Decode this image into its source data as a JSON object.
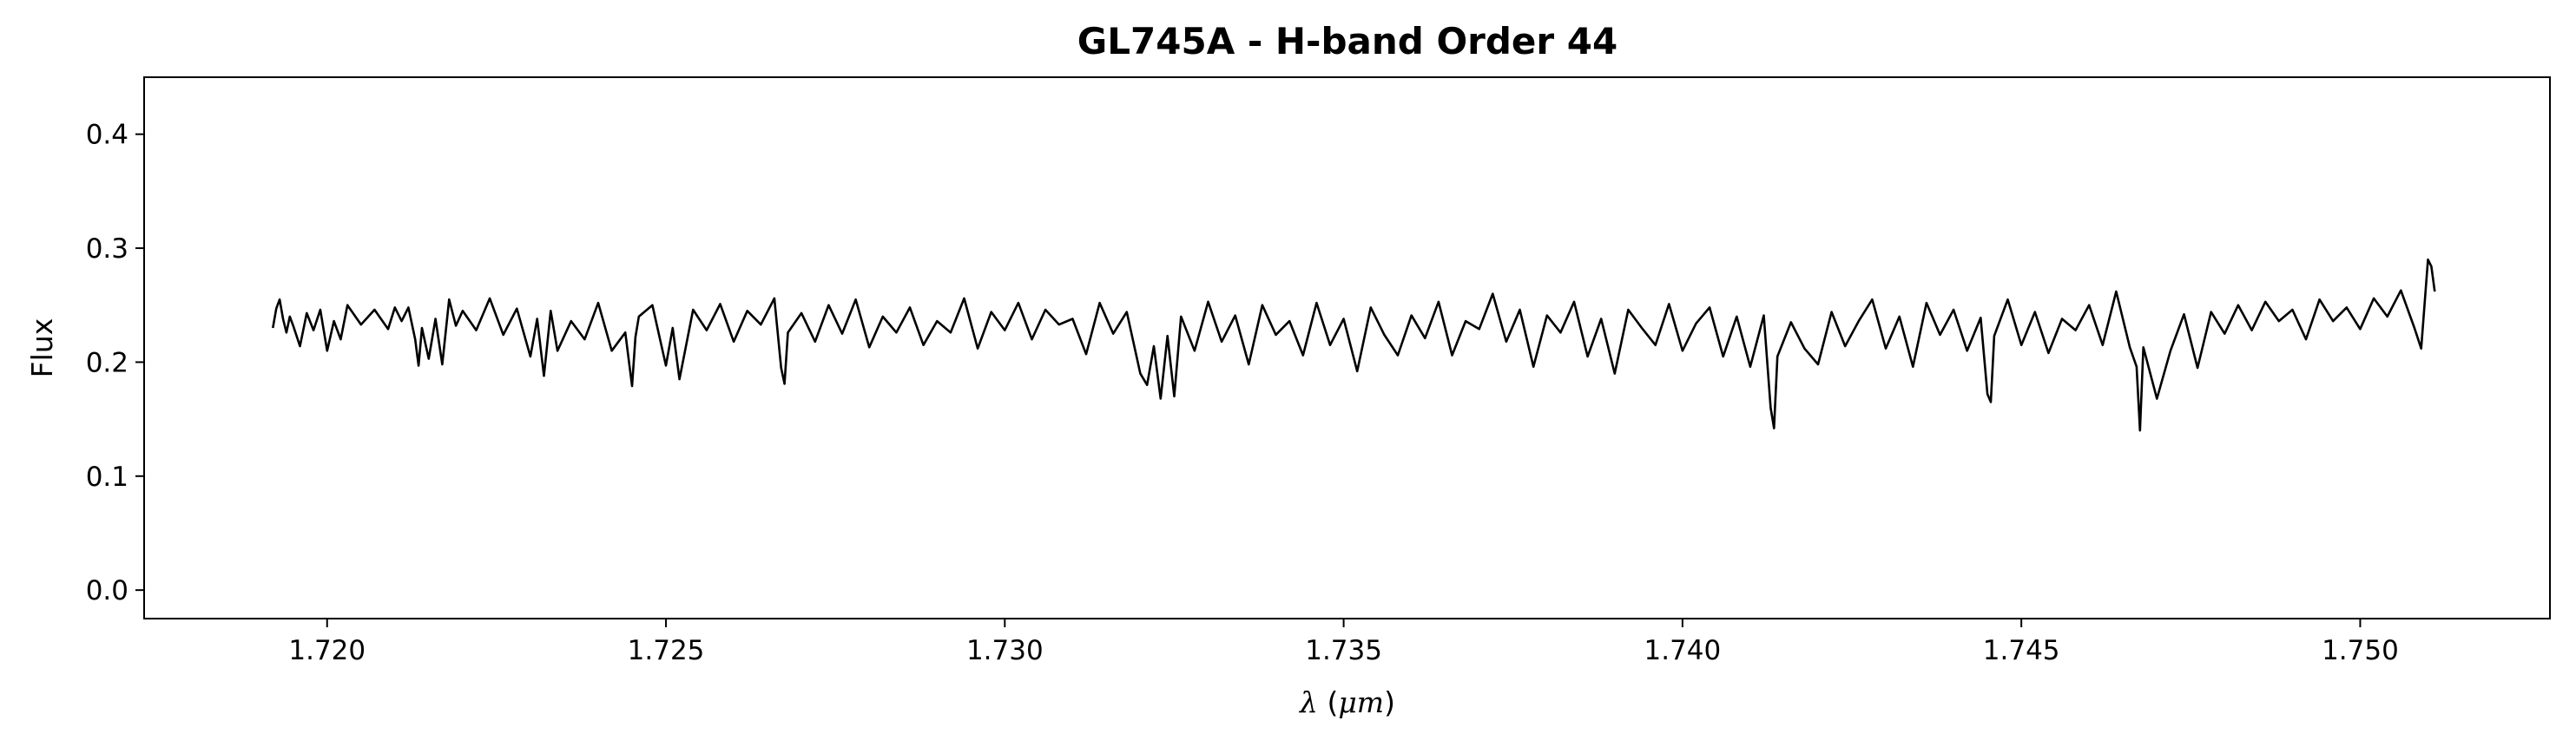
{
  "chart_data": {
    "type": "line",
    "title": "GL745A - H-band Order 44",
    "xlabel": "λ (μm)",
    "ylabel": "Flux",
    "xlim": [
      1.7173,
      1.7528
    ],
    "ylim": [
      -0.025,
      0.45
    ],
    "xticks": [
      "1.720",
      "1.725",
      "1.730",
      "1.735",
      "1.740",
      "1.745",
      "1.750"
    ],
    "yticks": [
      "0.0",
      "0.1",
      "0.2",
      "0.3",
      "0.4"
    ],
    "grid": false,
    "line_color": "#000000",
    "series": [
      {
        "x": [
          1.7192,
          1.71925,
          1.7193,
          1.71935,
          1.7194,
          1.71945,
          1.7195,
          1.7196,
          1.7197,
          1.7198,
          1.7199,
          1.72,
          1.7201,
          1.7202,
          1.7203,
          1.7205,
          1.7207,
          1.7209,
          1.721,
          1.7211,
          1.7212,
          1.7213,
          1.72135,
          1.7214,
          1.7215,
          1.7216,
          1.7217,
          1.7218,
          1.7219,
          1.722,
          1.7222,
          1.7224,
          1.7226,
          1.7228,
          1.723,
          1.7231,
          1.7232,
          1.7233,
          1.7234,
          1.7236,
          1.7238,
          1.724,
          1.7242,
          1.7244,
          1.7245,
          1.72455,
          1.7246,
          1.7248,
          1.725,
          1.7251,
          1.7252,
          1.7254,
          1.7256,
          1.7258,
          1.726,
          1.7262,
          1.7264,
          1.7266,
          1.7267,
          1.72675,
          1.7268,
          1.727,
          1.7272,
          1.7274,
          1.7276,
          1.7278,
          1.728,
          1.7282,
          1.7284,
          1.7286,
          1.7288,
          1.729,
          1.7292,
          1.7294,
          1.7296,
          1.7298,
          1.73,
          1.7302,
          1.7304,
          1.7306,
          1.7308,
          1.731,
          1.7312,
          1.7314,
          1.7316,
          1.7318,
          1.732,
          1.7321,
          1.7322,
          1.7323,
          1.7324,
          1.7325,
          1.7326,
          1.7328,
          1.733,
          1.7332,
          1.7334,
          1.7336,
          1.7338,
          1.734,
          1.7342,
          1.7344,
          1.7346,
          1.7348,
          1.735,
          1.7352,
          1.7354,
          1.7356,
          1.7358,
          1.736,
          1.7362,
          1.7364,
          1.7366,
          1.7368,
          1.737,
          1.7372,
          1.7374,
          1.7376,
          1.7378,
          1.738,
          1.7382,
          1.7384,
          1.7386,
          1.7388,
          1.739,
          1.7392,
          1.7394,
          1.7396,
          1.7398,
          1.74,
          1.7402,
          1.7404,
          1.7406,
          1.7408,
          1.741,
          1.7412,
          1.7413,
          1.74135,
          1.7414,
          1.7416,
          1.7418,
          1.742,
          1.7422,
          1.7424,
          1.7426,
          1.7428,
          1.743,
          1.7432,
          1.7434,
          1.7436,
          1.7438,
          1.744,
          1.7442,
          1.7444,
          1.7445,
          1.74455,
          1.7446,
          1.7448,
          1.745,
          1.7452,
          1.7454,
          1.7456,
          1.7458,
          1.746,
          1.7462,
          1.7464,
          1.7466,
          1.7467,
          1.74675,
          1.7468,
          1.747,
          1.7472,
          1.7474,
          1.7476,
          1.7478,
          1.748,
          1.7482,
          1.7484,
          1.7486,
          1.7488,
          1.749,
          1.7492,
          1.7494,
          1.7496,
          1.7498,
          1.75,
          1.7502,
          1.7504,
          1.7506,
          1.7508,
          1.7509,
          1.751,
          1.75105,
          1.7511
        ],
        "y": [
          0.23,
          0.247,
          0.255,
          0.238,
          0.226,
          0.24,
          0.232,
          0.214,
          0.243,
          0.228,
          0.246,
          0.21,
          0.236,
          0.22,
          0.25,
          0.233,
          0.246,
          0.229,
          0.248,
          0.236,
          0.248,
          0.22,
          0.197,
          0.23,
          0.203,
          0.238,
          0.198,
          0.255,
          0.232,
          0.245,
          0.228,
          0.256,
          0.224,
          0.247,
          0.205,
          0.238,
          0.188,
          0.245,
          0.21,
          0.236,
          0.22,
          0.252,
          0.21,
          0.226,
          0.179,
          0.222,
          0.24,
          0.25,
          0.197,
          0.23,
          0.185,
          0.246,
          0.228,
          0.251,
          0.218,
          0.245,
          0.233,
          0.256,
          0.195,
          0.181,
          0.226,
          0.243,
          0.218,
          0.25,
          0.225,
          0.255,
          0.213,
          0.24,
          0.226,
          0.248,
          0.215,
          0.236,
          0.226,
          0.256,
          0.212,
          0.244,
          0.228,
          0.252,
          0.22,
          0.246,
          0.233,
          0.238,
          0.207,
          0.252,
          0.225,
          0.244,
          0.19,
          0.18,
          0.214,
          0.168,
          0.223,
          0.17,
          0.24,
          0.21,
          0.253,
          0.218,
          0.241,
          0.198,
          0.25,
          0.224,
          0.236,
          0.206,
          0.252,
          0.215,
          0.238,
          0.192,
          0.248,
          0.224,
          0.206,
          0.241,
          0.221,
          0.253,
          0.206,
          0.236,
          0.229,
          0.26,
          0.218,
          0.246,
          0.196,
          0.241,
          0.226,
          0.253,
          0.205,
          0.238,
          0.19,
          0.246,
          0.23,
          0.215,
          0.251,
          0.21,
          0.234,
          0.248,
          0.205,
          0.24,
          0.196,
          0.241,
          0.16,
          0.142,
          0.205,
          0.235,
          0.212,
          0.198,
          0.244,
          0.214,
          0.236,
          0.255,
          0.212,
          0.24,
          0.196,
          0.252,
          0.224,
          0.246,
          0.21,
          0.239,
          0.172,
          0.165,
          0.223,
          0.255,
          0.215,
          0.244,
          0.208,
          0.238,
          0.228,
          0.25,
          0.215,
          0.262,
          0.213,
          0.196,
          0.14,
          0.213,
          0.168,
          0.21,
          0.242,
          0.195,
          0.244,
          0.225,
          0.25,
          0.228,
          0.253,
          0.236,
          0.246,
          0.22,
          0.255,
          0.236,
          0.248,
          0.229,
          0.256,
          0.24,
          0.263,
          0.23,
          0.212,
          0.29,
          0.284,
          0.262
        ]
      }
    ]
  }
}
